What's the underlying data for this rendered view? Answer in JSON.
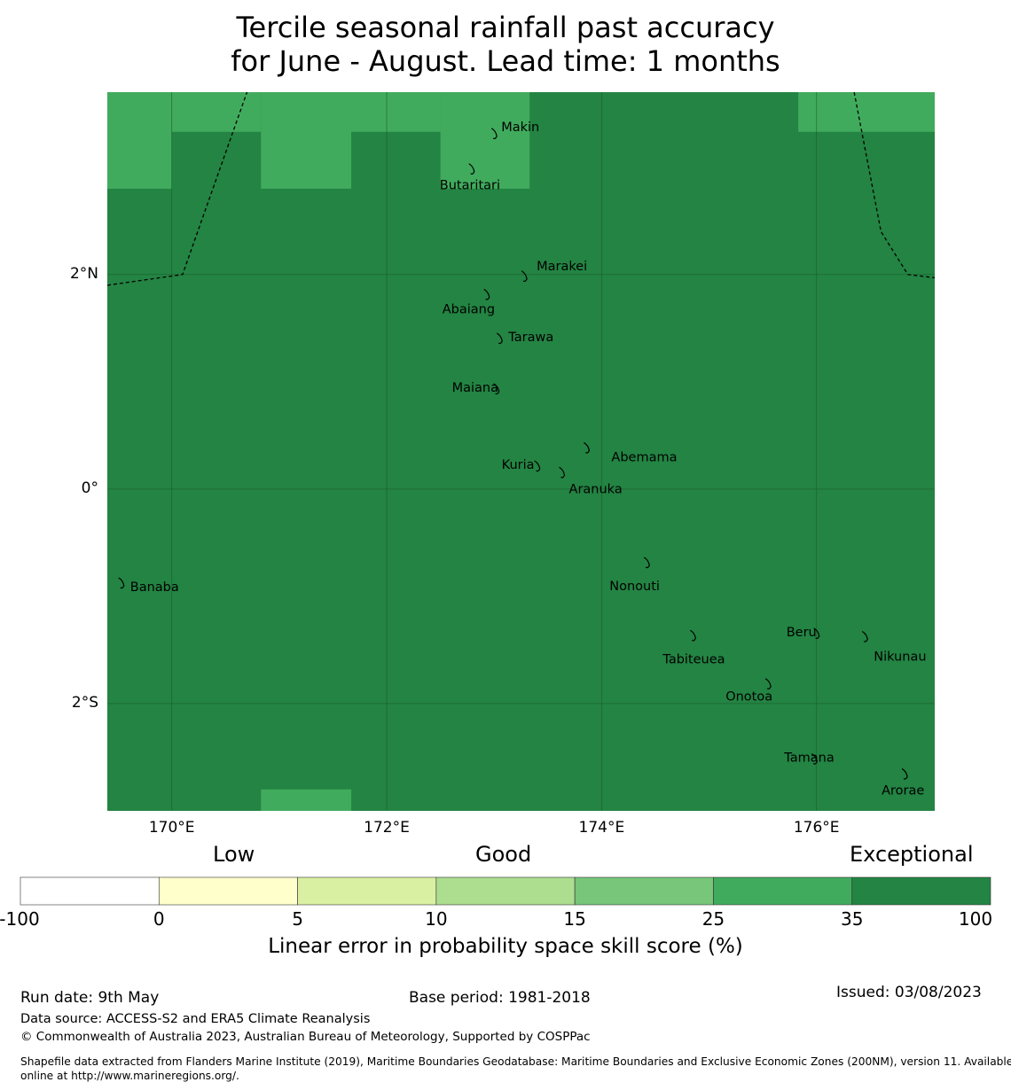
{
  "title_line1": "Tercile seasonal rainfall past accuracy",
  "title_line2": "for June - August. Lead time: 1 months",
  "map": {
    "lat_ticks": [
      {
        "label": "2°N",
        "lat": 2
      },
      {
        "label": "0°",
        "lat": 0
      },
      {
        "label": "2°S",
        "lat": -2
      }
    ],
    "lon_ticks": [
      {
        "label": "170°E",
        "lon": 170
      },
      {
        "label": "172°E",
        "lon": 172
      },
      {
        "label": "174°E",
        "lon": 174
      },
      {
        "label": "176°E",
        "lon": 176
      }
    ],
    "extent": {
      "lon_min": 169.4,
      "lon_max": 177.1,
      "lat_min": -3.0,
      "lat_max": 3.7
    },
    "cells_score_25_35": [
      {
        "lon0": 169.4,
        "lon1": 170.0,
        "lat0": 2.8,
        "lat1": 3.7
      },
      {
        "lon0": 170.0,
        "lon1": 170.83,
        "lat0": 3.33,
        "lat1": 3.7
      },
      {
        "lon0": 170.83,
        "lon1": 171.67,
        "lat0": 2.8,
        "lat1": 3.7
      },
      {
        "lon0": 171.67,
        "lon1": 172.5,
        "lat0": 3.33,
        "lat1": 3.7
      },
      {
        "lon0": 172.5,
        "lon1": 173.33,
        "lat0": 2.8,
        "lat1": 3.7
      },
      {
        "lon0": 175.83,
        "lon1": 177.1,
        "lat0": 3.33,
        "lat1": 3.7
      },
      {
        "lon0": 170.83,
        "lon1": 171.67,
        "lat0": -3.0,
        "lat1": -2.8
      }
    ],
    "places": [
      {
        "name": "Makin",
        "lon": 173.0,
        "lat": 3.33
      },
      {
        "name": "Butaritari",
        "lon": 172.79,
        "lat": 3.0
      },
      {
        "name": "Marakei",
        "lon": 173.28,
        "lat": 2.0
      },
      {
        "name": "Abaiang",
        "lon": 172.93,
        "lat": 1.83
      },
      {
        "name": "Tarawa",
        "lon": 173.05,
        "lat": 1.42
      },
      {
        "name": "Maiana",
        "lon": 173.02,
        "lat": 0.95
      },
      {
        "name": "Abemama",
        "lon": 173.86,
        "lat": 0.4
      },
      {
        "name": "Kuria",
        "lon": 173.4,
        "lat": 0.23
      },
      {
        "name": "Aranuka",
        "lon": 173.63,
        "lat": 0.17
      },
      {
        "name": "Nonouti",
        "lon": 174.42,
        "lat": -0.67
      },
      {
        "name": "Banaba",
        "lon": 169.53,
        "lat": -0.86
      },
      {
        "name": "Tabiteuea",
        "lon": 174.85,
        "lat": -1.35
      },
      {
        "name": "Beru",
        "lon": 176.0,
        "lat": -1.33
      },
      {
        "name": "Nikunau",
        "lon": 176.45,
        "lat": -1.36
      },
      {
        "name": "Onotoa",
        "lon": 175.55,
        "lat": -1.8
      },
      {
        "name": "Tamana",
        "lon": 175.98,
        "lat": -2.5
      },
      {
        "name": "Arorae",
        "lon": 176.82,
        "lat": -2.64
      }
    ]
  },
  "colorbar": {
    "category_low": "Low",
    "category_good": "Good",
    "category_exceptional": "Exceptional",
    "ticks": [
      "-100",
      "0",
      "5",
      "10",
      "15",
      "25",
      "35",
      "100"
    ],
    "colors": [
      "#ffffff",
      "#ffffcc",
      "#d9f0a3",
      "#addd8e",
      "#78c679",
      "#41ab5d",
      "#238443"
    ],
    "label": "Linear error in probability space skill score (%)"
  },
  "footer": {
    "run_date": "Run date: 9th May",
    "base_period": "Base period: 1981-2018",
    "issued": "Issued: 03/08/2023",
    "data_source": "Data source: ACCESS-S2 and ERA5 Climate Reanalysis",
    "copyright": "© Commonwealth of Australia 2023, Australian Bureau of Meteorology, Supported by COSPPac",
    "shapefile_line1": "Shapefile data extracted from Flanders Marine Institute (2019), Maritime Boundaries Geodatabase: Maritime Boundaries and Exclusive Economic Zones (200NM), version 11. Available",
    "shapefile_line2": "online at http://www.marineregions.org/."
  }
}
